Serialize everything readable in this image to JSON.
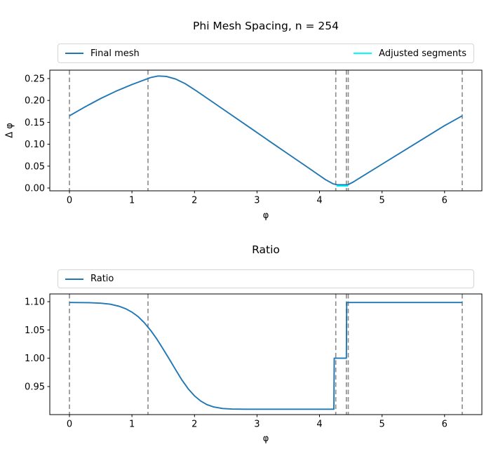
{
  "figure": {
    "background": "#ffffff"
  },
  "colors": {
    "vline": "#8a8a8a",
    "spine": "#000000",
    "legend_border": "#d5d5d5"
  },
  "chart_data": [
    {
      "type": "line",
      "title": "Phi Mesh Spacing, n = 254",
      "xlabel": "φ",
      "ylabel": "Δ φ",
      "xlim": [
        -0.314,
        6.597
      ],
      "ylim": [
        -0.0064,
        0.2693
      ],
      "xticks": [
        0,
        1,
        2,
        3,
        4,
        5,
        6
      ],
      "xtick_labels": [
        "0",
        "1",
        "2",
        "3",
        "4",
        "5",
        "6"
      ],
      "yticks": [
        0,
        0.05,
        0.1,
        0.15,
        0.2,
        0.25
      ],
      "ytick_labels": [
        "0.00",
        "0.05",
        "0.10",
        "0.15",
        "0.20",
        "0.25"
      ],
      "grid": false,
      "vlines": {
        "x": [
          0,
          1.257,
          4.26,
          4.43,
          4.46,
          6.283
        ],
        "style": "dashed",
        "color": "#8a8a8a"
      },
      "legend_position": "above-expanded-2col",
      "legend": [
        {
          "label": "Final mesh",
          "color": "#1f77b4"
        },
        {
          "label": "Adjusted segments",
          "color": "#00ffff"
        }
      ],
      "series": [
        {
          "name": "Final mesh",
          "color": "#1f77b4",
          "points": [
            [
              0,
              0.165
            ],
            [
              0.25,
              0.1855
            ],
            [
              0.5,
              0.2045
            ],
            [
              0.75,
              0.2215
            ],
            [
              1.0,
              0.2365
            ],
            [
              1.15,
              0.2445
            ],
            [
              1.3,
              0.2525
            ],
            [
              1.42,
              0.256
            ],
            [
              1.55,
              0.255
            ],
            [
              1.7,
              0.249
            ],
            [
              1.85,
              0.2385
            ],
            [
              2.03,
              0.222
            ],
            [
              2.3,
              0.1955
            ],
            [
              2.6,
              0.166
            ],
            [
              2.9,
              0.1365
            ],
            [
              3.2,
              0.107
            ],
            [
              3.5,
              0.0776
            ],
            [
              3.8,
              0.0482
            ],
            [
              4.1,
              0.0187
            ],
            [
              4.22,
              0.0095
            ],
            [
              4.29,
              0.0072
            ],
            [
              4.45,
              0.0072
            ],
            [
              4.53,
              0.013
            ],
            [
              5.0,
              0.0545
            ],
            [
              5.5,
              0.0985
            ],
            [
              6.0,
              0.1425
            ],
            [
              6.283,
              0.165
            ]
          ]
        },
        {
          "name": "Adjusted segments",
          "color": "#00ffff",
          "points": [
            [
              4.27,
              0.0045
            ],
            [
              4.46,
              0.0045
            ]
          ]
        }
      ]
    },
    {
      "type": "line",
      "title": "Ratio",
      "xlabel": "φ",
      "ylabel": "",
      "xlim": [
        -0.314,
        6.597
      ],
      "ylim": [
        0.9004,
        1.1136
      ],
      "xticks": [
        0,
        1,
        2,
        3,
        4,
        5,
        6
      ],
      "xtick_labels": [
        "0",
        "1",
        "2",
        "3",
        "4",
        "5",
        "6"
      ],
      "yticks": [
        0.95,
        1.0,
        1.05,
        1.1
      ],
      "ytick_labels": [
        "0.95",
        "1.00",
        "1.05",
        "1.10"
      ],
      "grid": false,
      "vlines": {
        "x": [
          0,
          1.257,
          4.26,
          4.43,
          4.46,
          6.283
        ],
        "style": "dashed",
        "color": "#8a8a8a"
      },
      "legend_position": "above-expanded",
      "legend": [
        {
          "label": "Ratio",
          "color": "#1f77b4"
        }
      ],
      "series": [
        {
          "name": "Ratio",
          "color": "#1f77b4",
          "points": [
            [
              0,
              1.0985
            ],
            [
              0.3,
              1.0982
            ],
            [
              0.5,
              1.0972
            ],
            [
              0.65,
              1.0955
            ],
            [
              0.8,
              1.0917
            ],
            [
              0.9,
              1.0875
            ],
            [
              1.0,
              1.0815
            ],
            [
              1.1,
              1.0735
            ],
            [
              1.2,
              1.0625
            ],
            [
              1.3,
              1.049
            ],
            [
              1.4,
              1.0335
            ],
            [
              1.5,
              1.016
            ],
            [
              1.6,
              0.998
            ],
            [
              1.7,
              0.9795
            ],
            [
              1.8,
              0.9615
            ],
            [
              1.9,
              0.946
            ],
            [
              2.0,
              0.9335
            ],
            [
              2.1,
              0.9243
            ],
            [
              2.2,
              0.918
            ],
            [
              2.3,
              0.9142
            ],
            [
              2.45,
              0.9112
            ],
            [
              2.6,
              0.9102
            ],
            [
              2.8,
              0.91
            ],
            [
              4.23,
              0.91
            ],
            [
              4.235,
              1.0
            ],
            [
              4.43,
              1.0
            ],
            [
              4.435,
              1.0985
            ],
            [
              6.283,
              1.0985
            ]
          ]
        }
      ]
    }
  ]
}
